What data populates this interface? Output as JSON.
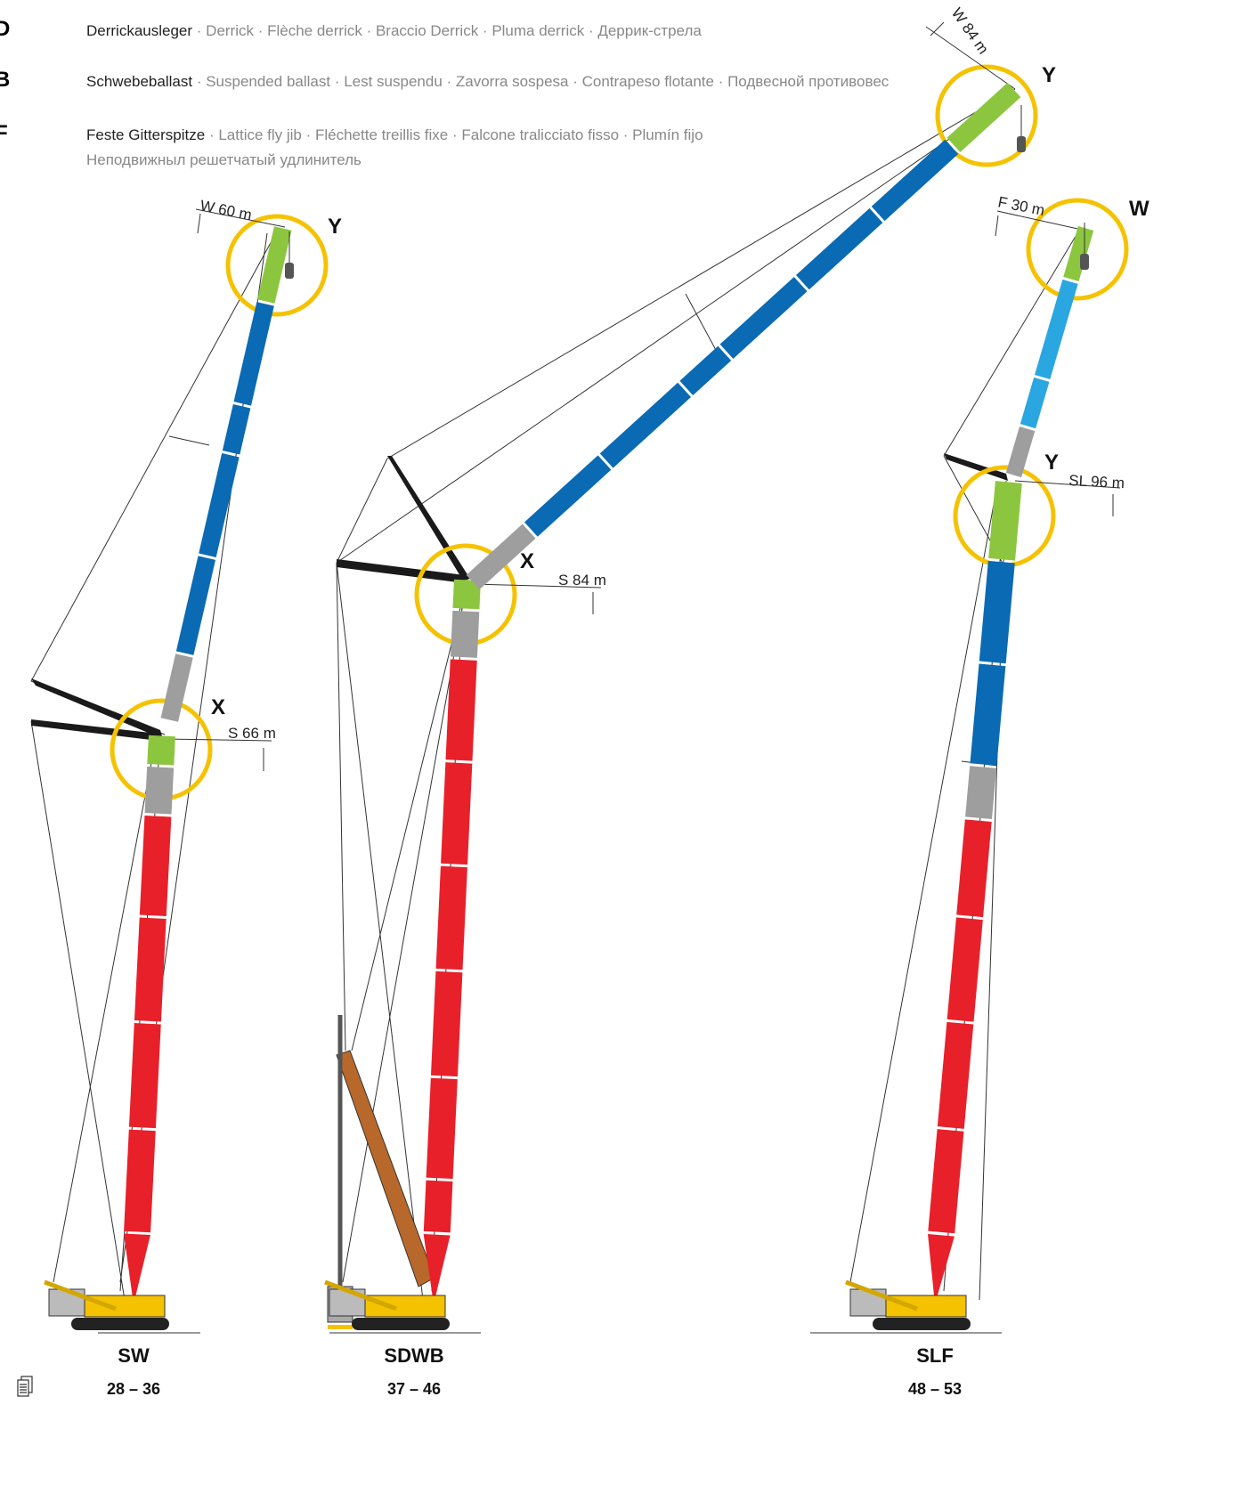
{
  "legend": [
    {
      "key": "D",
      "term": "Derrickausleger",
      "translations": "· Derrick · Flèche derrick · Braccio Derrick · Pluma derrick · Деррик-стрела"
    },
    {
      "key": "B",
      "term": "Schwebeballast",
      "translations": "· Suspended ballast · Lest suspendu · Zavorra sospesa · Contrapeso flotante · Подвесной противовес"
    },
    {
      "key": "F",
      "term": "Feste Gitterspitze",
      "translations": "· Lattice fly jib · Fléchette treillis fixe · Falcone tralicciato fisso · Plumín fijo",
      "translations_line2": "Неподвижныл решетчатый удлинитель"
    }
  ],
  "cranes": [
    {
      "name": "SW",
      "pages": "28 – 36",
      "annotations": [
        "W 60 m",
        "Y",
        "X",
        "S 66 m"
      ]
    },
    {
      "name": "SDWB",
      "pages": "37 – 46",
      "annotations": [
        "W 84 m",
        "Y",
        "X",
        "S 84 m"
      ]
    },
    {
      "name": "SLF",
      "pages": "48 – 53",
      "annotations": [
        "F 30 m",
        "W",
        "Y",
        "SL 96 m"
      ]
    }
  ]
}
